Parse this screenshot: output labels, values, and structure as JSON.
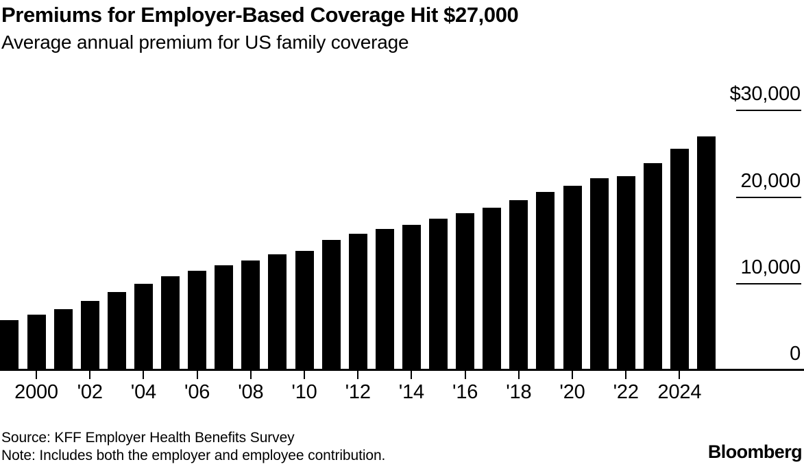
{
  "header": {
    "title": "Premiums for Employer-Based Coverage Hit $27,000",
    "subtitle": "Average annual premium for US family coverage"
  },
  "chart_data": {
    "type": "bar",
    "title": "Premiums for Employer-Based Coverage Hit $27,000",
    "subtitle": "Average annual premium for US family coverage",
    "unit": "USD",
    "bar_color": "#000000",
    "background_color": "#ffffff",
    "grid": false,
    "ylim": [
      0,
      30000
    ],
    "categories": [
      1999,
      2000,
      2001,
      2002,
      2003,
      2004,
      2005,
      2006,
      2007,
      2008,
      2009,
      2010,
      2011,
      2012,
      2013,
      2014,
      2015,
      2016,
      2017,
      2018,
      2019,
      2020,
      2021,
      2022,
      2023,
      2024,
      2025
    ],
    "values": [
      5791,
      6438,
      7061,
      8003,
      9068,
      9950,
      10880,
      11480,
      12106,
      12680,
      13375,
      13770,
      15073,
      15745,
      16351,
      16834,
      17545,
      18142,
      18764,
      19616,
      20576,
      21342,
      22221,
      22463,
      23968,
      25572,
      26993
    ],
    "y_ticks": [
      {
        "label": "$30,000",
        "value": 30000
      },
      {
        "label": "20,000",
        "value": 20000
      },
      {
        "label": "10,000",
        "value": 10000
      },
      {
        "label": "0",
        "value": 0
      }
    ],
    "x_ticks": [
      {
        "label": "2000",
        "year": 2000
      },
      {
        "label": "'02",
        "year": 2002
      },
      {
        "label": "'04",
        "year": 2004
      },
      {
        "label": "'06",
        "year": 2006
      },
      {
        "label": "'08",
        "year": 2008
      },
      {
        "label": "'10",
        "year": 2010
      },
      {
        "label": "'12",
        "year": 2012
      },
      {
        "label": "'14",
        "year": 2014
      },
      {
        "label": "'16",
        "year": 2016
      },
      {
        "label": "'18",
        "year": 2018
      },
      {
        "label": "'20",
        "year": 2020
      },
      {
        "label": "'22",
        "year": 2022
      },
      {
        "label": "2024",
        "year": 2024
      }
    ]
  },
  "footer": {
    "source": "Source: KFF Employer Health Benefits Survey",
    "note": "Note: Includes both the employer and employee contribution.",
    "brand": "Bloomberg"
  }
}
